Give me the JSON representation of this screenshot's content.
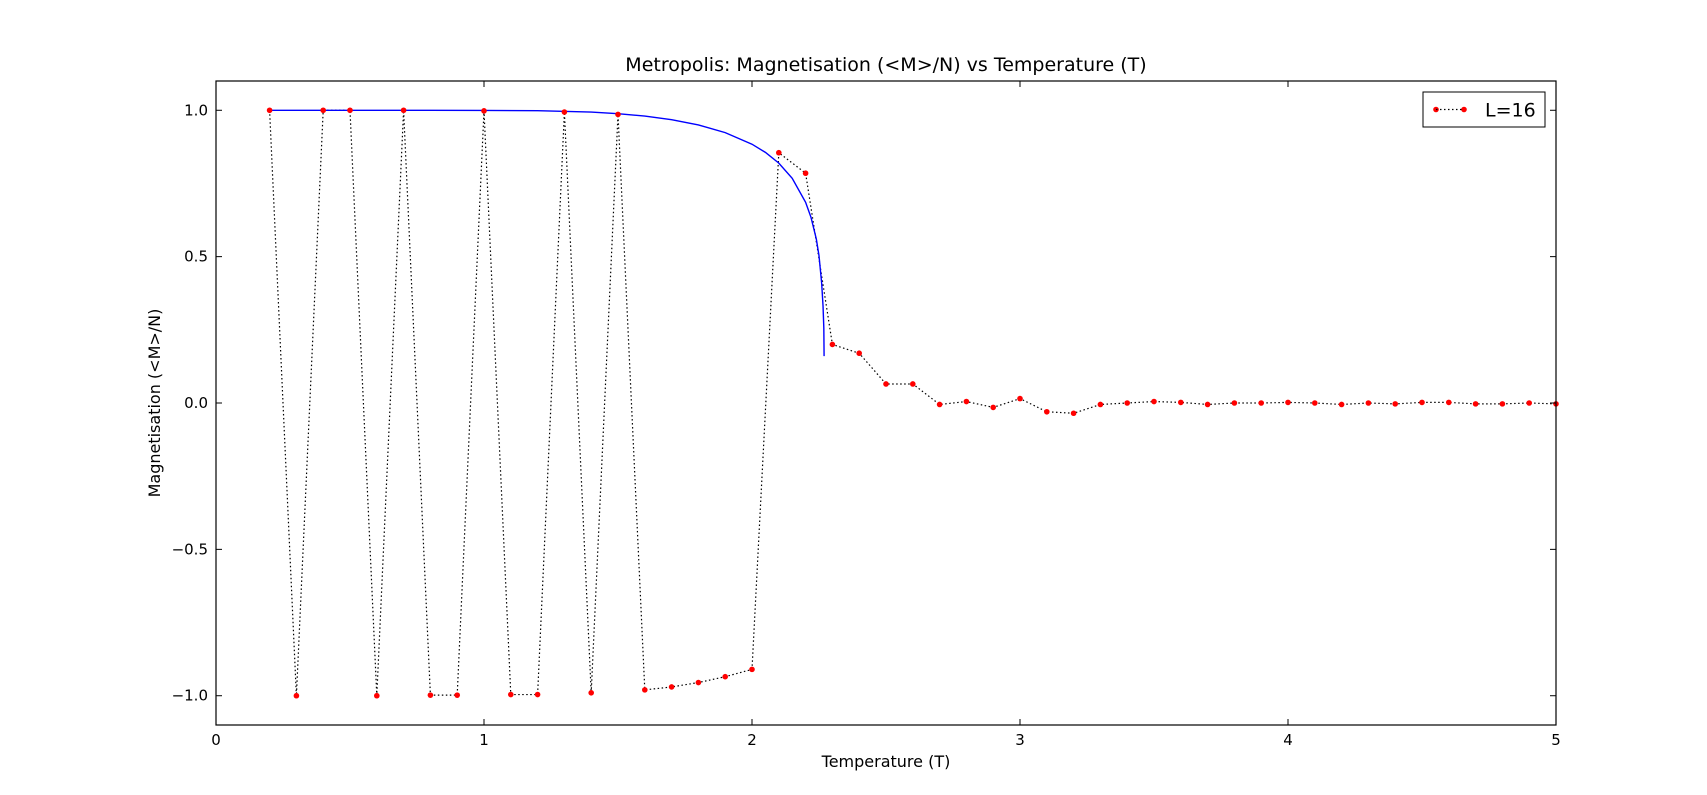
{
  "chart_data": {
    "type": "scatter",
    "title": "Metropolis: Magnetisation (<M>/N) vs Temperature (T)",
    "xlabel": "Temperature (T)",
    "ylabel": "Magnetisation (<M>/N)",
    "xlim": [
      0,
      5
    ],
    "ylim": [
      -1.1,
      1.1
    ],
    "xticks": [
      0,
      1,
      2,
      3,
      4,
      5
    ],
    "xtick_labels": [
      "0",
      "1",
      "2",
      "3",
      "4",
      "5"
    ],
    "yticks": [
      -1.0,
      -0.5,
      0.0,
      0.5,
      1.0
    ],
    "ytick_labels": [
      "−1.0",
      "−0.5",
      "0.0",
      "0.5",
      "1.0"
    ],
    "grid": false,
    "legend": {
      "position": "top-right",
      "entries": [
        "L=16"
      ]
    },
    "series": [
      {
        "name": "L=16",
        "style": "red dots joined by black dotted line",
        "color": "#ff0000",
        "line_color": "#000000",
        "x": [
          0.2,
          0.3,
          0.4,
          0.5,
          0.6,
          0.7,
          0.8,
          0.9,
          1.0,
          1.1,
          1.2,
          1.3,
          1.4,
          1.5,
          1.6,
          1.7,
          1.8,
          1.9,
          2.0,
          2.1,
          2.2,
          2.3,
          2.4,
          2.5,
          2.6,
          2.7,
          2.8,
          2.9,
          3.0,
          3.1,
          3.2,
          3.3,
          3.4,
          3.5,
          3.6,
          3.7,
          3.8,
          3.9,
          4.0,
          4.1,
          4.2,
          4.3,
          4.4,
          4.5,
          4.6,
          4.7,
          4.8,
          4.9,
          5.0
        ],
        "y": [
          1.0,
          -1.0,
          1.0,
          1.0,
          -1.0,
          1.0,
          -0.998,
          -0.998,
          0.998,
          -0.996,
          -0.996,
          0.994,
          -0.99,
          0.986,
          -0.98,
          -0.97,
          -0.955,
          -0.935,
          -0.91,
          0.855,
          0.785,
          0.2,
          0.17,
          0.065,
          0.065,
          -0.005,
          0.005,
          -0.015,
          0.015,
          -0.03,
          -0.035,
          -0.005,
          0.0,
          0.005,
          0.002,
          -0.005,
          0.0,
          0.0,
          0.002,
          0.0,
          -0.005,
          0.0,
          -0.003,
          0.002,
          0.002,
          -0.003,
          -0.003,
          0.0,
          -0.003
        ]
      },
      {
        "name": "",
        "style": "solid blue line (exact Onsager magnetisation)",
        "color": "#0000ff",
        "x": [
          0.2,
          0.4,
          0.6,
          0.8,
          1.0,
          1.2,
          1.4,
          1.5,
          1.6,
          1.7,
          1.8,
          1.9,
          2.0,
          2.05,
          2.1,
          2.15,
          2.2,
          2.22,
          2.24,
          2.25,
          2.26,
          2.265,
          2.268,
          2.269
        ],
        "y": [
          1.0,
          1.0,
          1.0,
          1.0,
          0.9996,
          0.9985,
          0.9939,
          0.9885,
          0.9802,
          0.9679,
          0.95,
          0.9237,
          0.8841,
          0.8563,
          0.8194,
          0.7678,
          0.6856,
          0.6346,
          0.5604,
          0.5035,
          0.4085,
          0.3322,
          0.2565,
          0.16
        ]
      }
    ]
  }
}
